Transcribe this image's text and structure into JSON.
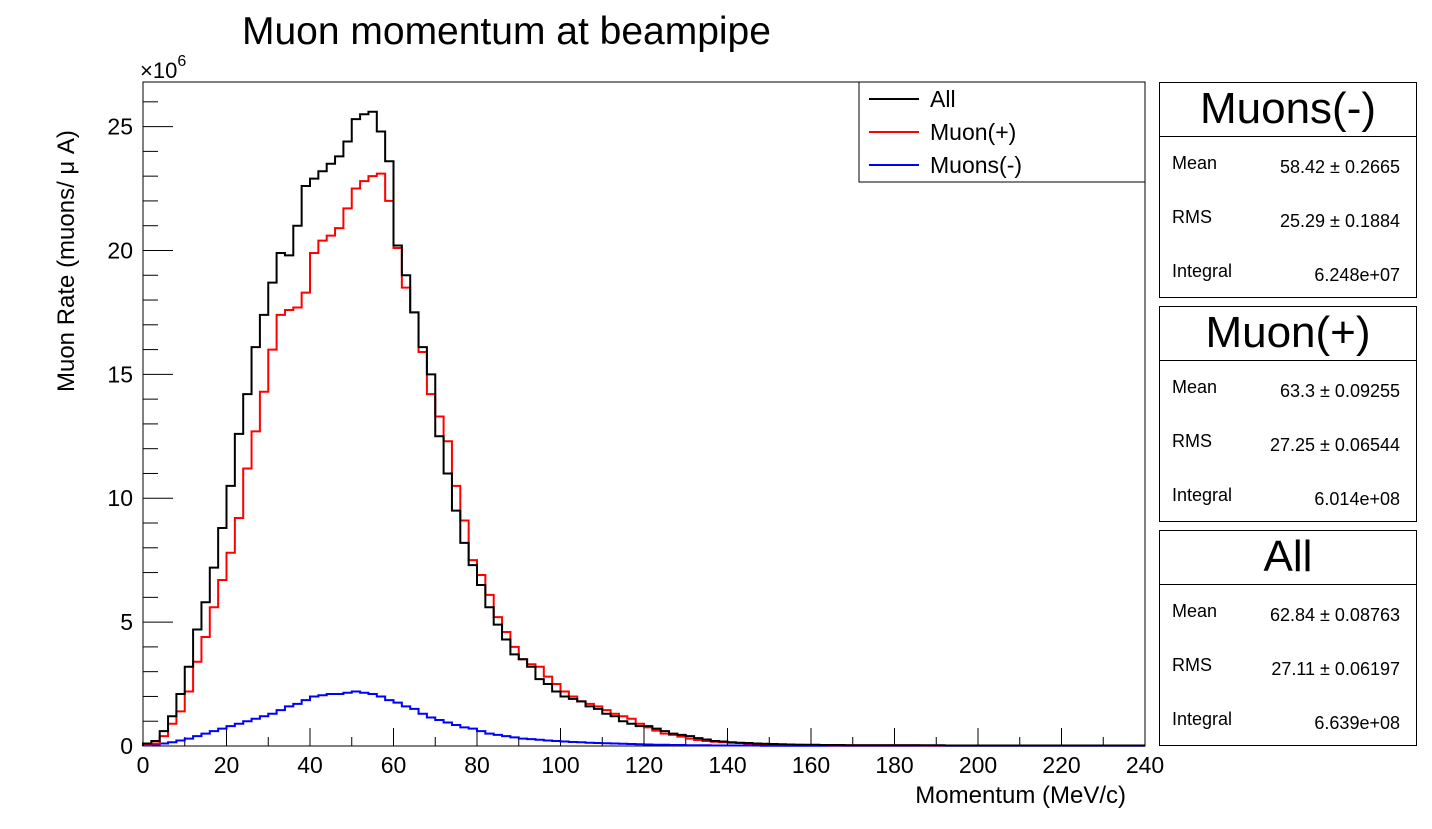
{
  "chart_data": {
    "type": "histogram",
    "title": "Muon momentum at beampipe",
    "xlabel": "Momentum (MeV/c)",
    "ylabel": "Muon Rate (muons/  μ A)",
    "y_multiplier": "×10",
    "y_multiplier_exp": "6",
    "xlim": [
      0,
      240
    ],
    "ylim": [
      0,
      26.8
    ],
    "bin_width": 2,
    "x_ticks": [
      0,
      20,
      40,
      60,
      80,
      100,
      120,
      140,
      160,
      180,
      200,
      220,
      240
    ],
    "y_ticks": [
      0,
      5,
      10,
      15,
      20,
      25
    ],
    "grid": false,
    "legend_position": "top-right",
    "legend": [
      {
        "label": "All",
        "color": "#000000"
      },
      {
        "label": "Muon(+)",
        "color": "#ff0000"
      },
      {
        "label": "Muons(-)",
        "color": "#0000ff"
      }
    ],
    "series": [
      {
        "name": "All",
        "color": "#000000",
        "values": [
          0.1,
          0.2,
          0.6,
          1.2,
          2.1,
          3.2,
          4.7,
          5.8,
          7.2,
          8.8,
          10.5,
          12.6,
          14.2,
          16.1,
          17.4,
          18.7,
          19.9,
          19.8,
          21.0,
          22.6,
          22.9,
          23.2,
          23.5,
          23.8,
          24.4,
          25.3,
          25.5,
          25.6,
          24.8,
          23.6,
          20.2,
          19.0,
          17.5,
          16.1,
          15.0,
          12.5,
          11.0,
          9.5,
          8.2,
          7.3,
          6.5,
          5.6,
          4.9,
          4.3,
          3.7,
          3.5,
          3.2,
          2.7,
          2.5,
          2.2,
          2.0,
          1.9,
          1.8,
          1.6,
          1.5,
          1.3,
          1.2,
          1.0,
          0.9,
          0.8,
          0.8,
          0.7,
          0.6,
          0.5,
          0.45,
          0.4,
          0.32,
          0.26,
          0.2,
          0.18,
          0.15,
          0.13,
          0.12,
          0.1,
          0.09,
          0.08,
          0.07,
          0.06,
          0.05,
          0.05,
          0.05,
          0.04,
          0.04,
          0.04,
          0.03,
          0.03,
          0.03,
          0.03,
          0.03,
          0.03,
          0.03,
          0.03,
          0.03,
          0.03,
          0.03,
          0.03,
          0.02,
          0.02,
          0.02,
          0.02,
          0.02,
          0.02,
          0.02,
          0.02,
          0.02,
          0.02,
          0.02,
          0.02,
          0.02,
          0.02,
          0.02,
          0.02,
          0.02,
          0.02,
          0.02,
          0.02,
          0.02,
          0.02,
          0.02,
          0.02
        ]
      },
      {
        "name": "Muon(+)",
        "color": "#ff0000",
        "values": [
          0.05,
          0.1,
          0.4,
          0.9,
          1.4,
          2.2,
          3.4,
          4.4,
          5.6,
          6.7,
          7.8,
          9.2,
          11.2,
          12.7,
          14.3,
          16.0,
          17.4,
          17.6,
          17.7,
          18.3,
          19.9,
          20.4,
          20.6,
          20.9,
          21.7,
          22.5,
          22.8,
          23.0,
          23.1,
          22.0,
          20.1,
          18.5,
          17.5,
          15.9,
          14.2,
          13.3,
          12.3,
          10.5,
          9.1,
          7.5,
          6.9,
          6.1,
          5.2,
          4.6,
          4.0,
          3.5,
          3.3,
          3.2,
          2.8,
          2.5,
          2.2,
          2.0,
          1.8,
          1.7,
          1.6,
          1.45,
          1.3,
          1.2,
          1.1,
          0.9,
          0.75,
          0.62,
          0.5,
          0.45,
          0.38,
          0.3,
          0.24,
          0.2,
          0.17,
          0.15,
          0.13,
          0.12,
          0.1,
          0.09,
          0.08,
          0.07,
          0.06,
          0.05,
          0.05,
          0.04,
          0.04,
          0.04,
          0.03,
          0.03,
          0.03,
          0.03,
          0.03,
          0.03,
          0.03,
          0.03,
          0.03,
          0.03,
          0.03,
          0.02,
          0.02,
          0.02,
          0.02,
          0.02,
          0.02,
          0.02,
          0.02,
          0.02,
          0.02,
          0.02,
          0.02,
          0.02,
          0.02,
          0.02,
          0.02,
          0.02,
          0.02,
          0.02,
          0.02,
          0.02,
          0.02,
          0.02,
          0.02,
          0.02,
          0.02,
          0.02
        ]
      },
      {
        "name": "Muons(-)",
        "color": "#0000ff",
        "values": [
          0.02,
          0.05,
          0.1,
          0.15,
          0.22,
          0.3,
          0.4,
          0.5,
          0.6,
          0.7,
          0.8,
          0.9,
          1.0,
          1.1,
          1.2,
          1.3,
          1.45,
          1.6,
          1.7,
          1.85,
          2.0,
          2.05,
          2.1,
          2.1,
          2.15,
          2.2,
          2.15,
          2.1,
          2.0,
          1.85,
          1.75,
          1.6,
          1.5,
          1.3,
          1.15,
          1.05,
          0.95,
          0.85,
          0.75,
          0.7,
          0.6,
          0.5,
          0.45,
          0.4,
          0.35,
          0.3,
          0.28,
          0.25,
          0.22,
          0.2,
          0.18,
          0.16,
          0.15,
          0.13,
          0.12,
          0.11,
          0.1,
          0.09,
          0.08,
          0.07,
          0.06,
          0.05,
          0.05,
          0.04,
          0.04,
          0.03,
          0.03,
          0.03,
          0.02,
          0.02,
          0.02,
          0.02,
          0.02,
          0.02,
          0.01,
          0.01,
          0.01,
          0.01,
          0.01,
          0.01,
          0.01,
          0.01,
          0.01,
          0.01,
          0.01,
          0.01,
          0.01,
          0.01,
          0.01,
          0.01,
          0.01,
          0.01,
          0.01,
          0.01,
          0.01,
          0.01,
          0.01,
          0.01,
          0.01,
          0.01,
          0.01,
          0.01,
          0.01,
          0.01,
          0.01,
          0.01,
          0.01,
          0.01,
          0.01,
          0.01,
          0.01,
          0.01,
          0.01,
          0.01,
          0.01,
          0.01,
          0.01,
          0.01,
          0.01,
          0.01
        ]
      }
    ]
  },
  "stats": [
    {
      "title": "Muons(-)",
      "mean": "58.42 ±  0.2665",
      "rms": "25.29 ±  0.1884",
      "integral": "6.248e+07"
    },
    {
      "title": "Muon(+)",
      "mean": "63.3 ±  0.09255",
      "rms": "27.25 ±  0.06544",
      "integral": "6.014e+08"
    },
    {
      "title": "All",
      "mean": "62.84 ±  0.08763",
      "rms": "27.11 ±  0.06197",
      "integral": "6.639e+08"
    }
  ],
  "stat_labels": {
    "mean": "Mean",
    "rms": "RMS",
    "integral": "Integral"
  }
}
